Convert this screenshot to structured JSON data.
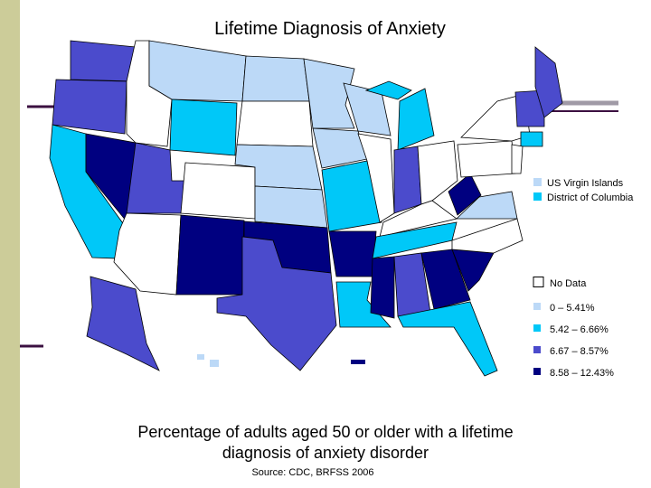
{
  "title": "Lifetime Diagnosis of Anxiety",
  "special": [
    {
      "label": "US Virgin Islands",
      "color": "#bcd9f7"
    },
    {
      "label": "District of Columbia",
      "color": "#00c8f8"
    }
  ],
  "legend": [
    {
      "label": "No Data",
      "color": "#ffffff"
    },
    {
      "label": "0 – 5.41%",
      "color": "#bcd9f7"
    },
    {
      "label": "5.42 – 6.66%",
      "color": "#00c8f8"
    },
    {
      "label": "6.67 – 8.57%",
      "color": "#4b4bcc"
    },
    {
      "label": "8.58 – 12.43%",
      "color": "#000080"
    }
  ],
  "caption": [
    "Percentage of adults aged 50 or older with a lifetime",
    "diagnosis of anxiety disorder"
  ],
  "source": "Source:  CDC, BRFSS 2006"
}
